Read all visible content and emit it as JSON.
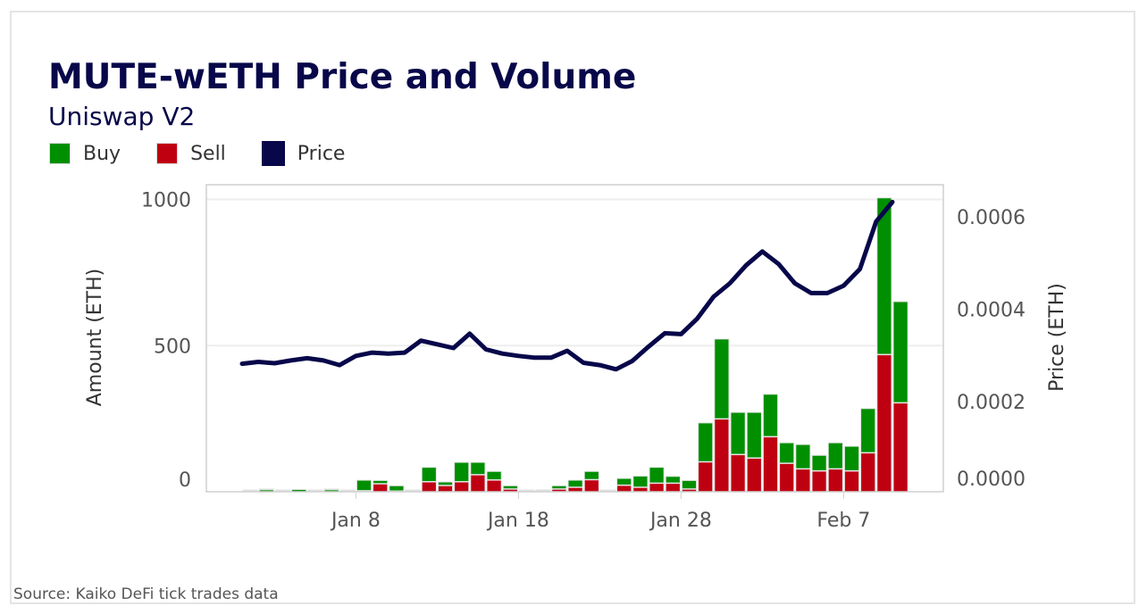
{
  "chart_data": {
    "type": "bar+line",
    "title": "MUTE-wETH Price and Volume",
    "subtitle": "Uniswap V2",
    "source": "Source: Kaiko DeFi tick trades data",
    "legend": [
      {
        "name": "Buy",
        "color": "#008f00"
      },
      {
        "name": "Sell",
        "color": "#bf0011"
      },
      {
        "name": "Price",
        "color": "#07074a"
      }
    ],
    "legend_placement": "top-left",
    "ylabel": "Amount (ETH)",
    "y2label": "Price (ETH)",
    "ylim": [
      0,
      1050
    ],
    "y2lim": [
      0,
      0.00064
    ],
    "yticks": [
      "0",
      "500",
      "1000"
    ],
    "y2ticks": [
      "0.0000",
      "0.0002",
      "0.0004",
      "0.0006"
    ],
    "xticks": [
      "Jan 8",
      "Jan 18",
      "Jan 28",
      "Feb 7"
    ],
    "grid": true,
    "x": [
      "Jan 1",
      "Jan 2",
      "Jan 3",
      "Jan 4",
      "Jan 5",
      "Jan 6",
      "Jan 7",
      "Jan 8",
      "Jan 9",
      "Jan 10",
      "Jan 11",
      "Jan 12",
      "Jan 13",
      "Jan 14",
      "Jan 15",
      "Jan 16",
      "Jan 17",
      "Jan 18",
      "Jan 19",
      "Jan 20",
      "Jan 21",
      "Jan 22",
      "Jan 23",
      "Jan 24",
      "Jan 25",
      "Jan 26",
      "Jan 27",
      "Jan 28",
      "Jan 29",
      "Jan 30",
      "Jan 31",
      "Feb 1",
      "Feb 2",
      "Feb 3",
      "Feb 4",
      "Feb 5",
      "Feb 6",
      "Feb 7",
      "Feb 8",
      "Feb 9",
      "Feb 10"
    ],
    "series": [
      {
        "name": "Sell",
        "type": "bar",
        "stack": "volume",
        "values": [
          1,
          3,
          1,
          0,
          1,
          3,
          0,
          1,
          25,
          0,
          1,
          32,
          19,
          32,
          56,
          38,
          7,
          0,
          2,
          7,
          13,
          39,
          0,
          20,
          13,
          27,
          27,
          7,
          100,
          247,
          125,
          113,
          186,
          95,
          76,
          69,
          76,
          69,
          131,
          467,
          302
        ]
      },
      {
        "name": "Buy",
        "type": "bar",
        "stack": "volume",
        "values": [
          2,
          5,
          2,
          6,
          1,
          5,
          0,
          37,
          12,
          19,
          1,
          50,
          13,
          67,
          43,
          30,
          12,
          1,
          3,
          12,
          25,
          29,
          1,
          24,
          39,
          55,
          24,
          30,
          134,
          274,
          145,
          157,
          146,
          71,
          84,
          54,
          90,
          85,
          152,
          537,
          347
        ]
      },
      {
        "name": "Price",
        "type": "line",
        "axis": "right",
        "values": [
          0.000282,
          0.000286,
          0.000283,
          0.000289,
          0.000294,
          0.000289,
          0.000279,
          0.000299,
          0.000306,
          0.000304,
          0.000306,
          0.000332,
          0.000324,
          0.000316,
          0.000347,
          0.000313,
          0.000304,
          0.000299,
          0.000295,
          0.000295,
          0.00031,
          0.000284,
          0.000279,
          0.00027,
          0.000288,
          0.000319,
          0.000348,
          0.000346,
          0.00038,
          0.000427,
          0.000456,
          0.000495,
          0.000525,
          0.000498,
          0.000456,
          0.000435,
          0.000435,
          0.000451,
          0.000487,
          0.00059,
          0.000632
        ]
      }
    ]
  }
}
